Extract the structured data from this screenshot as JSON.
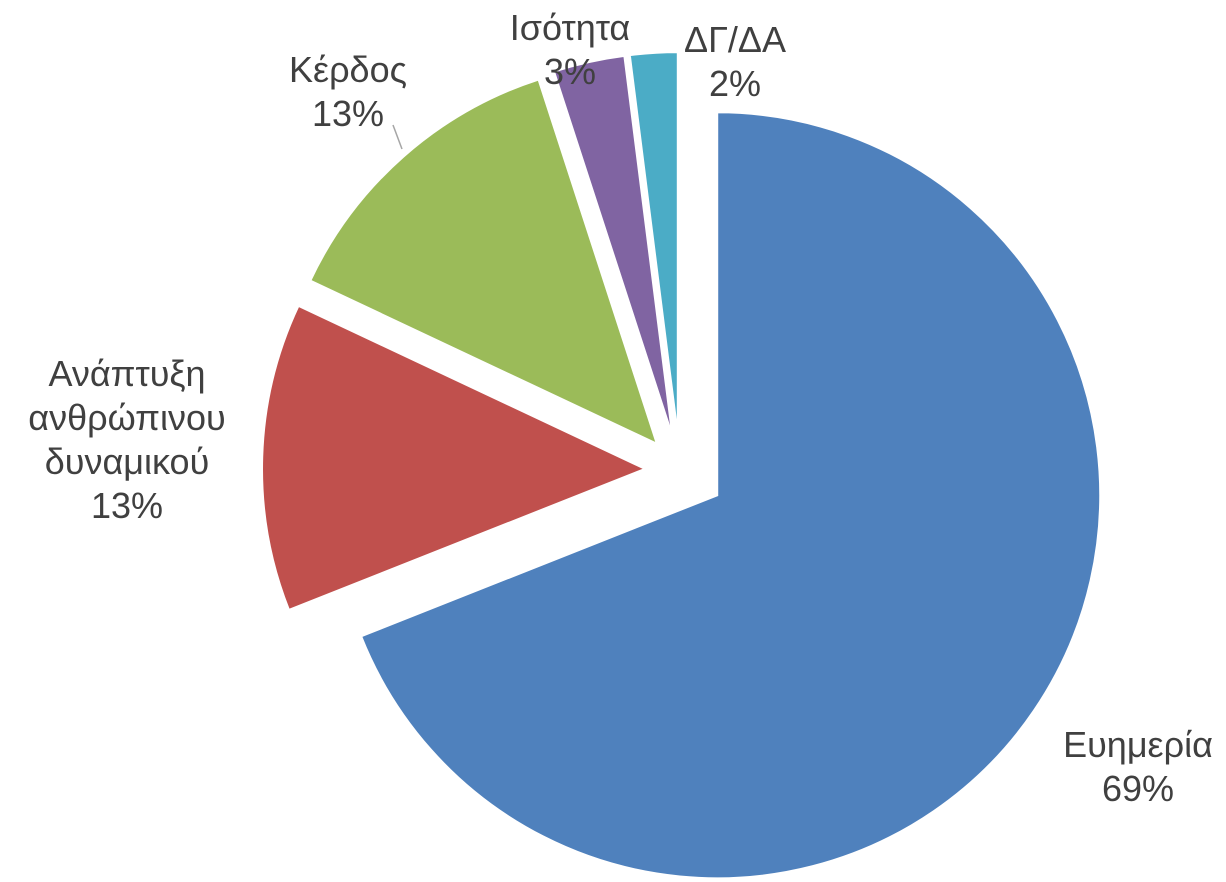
{
  "chart_data": {
    "type": "pie",
    "categories": [
      "Ευημερία",
      "Ανάπτυξη ανθρώπινου δυναμικού",
      "Κέρδος",
      "Ισότητα",
      "ΔΓ/ΔΑ"
    ],
    "values": [
      69,
      13,
      13,
      3,
      2
    ],
    "value_labels": [
      "69%",
      "13%",
      "13%",
      "3%",
      "2%"
    ],
    "colors": [
      "#4f81bd",
      "#c0504d",
      "#9bbb59",
      "#8064a2",
      "#4bacc6"
    ]
  }
}
